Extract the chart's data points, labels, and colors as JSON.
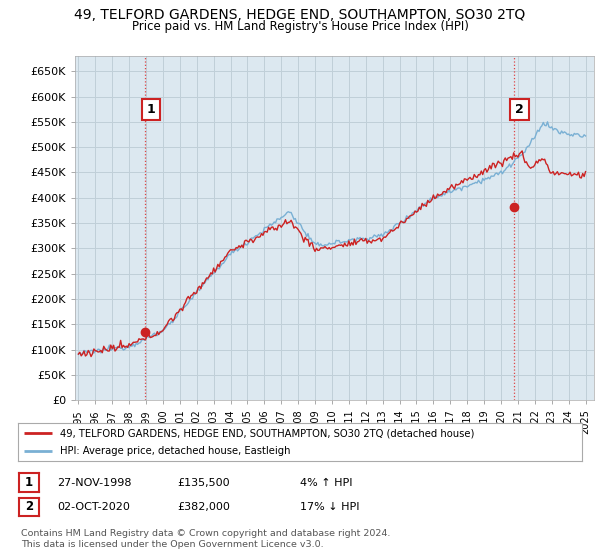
{
  "title": "49, TELFORD GARDENS, HEDGE END, SOUTHAMPTON, SO30 2TQ",
  "subtitle": "Price paid vs. HM Land Registry's House Price Index (HPI)",
  "ytick_labels": [
    "£0",
    "£50K",
    "£100K",
    "£150K",
    "£200K",
    "£250K",
    "£300K",
    "£350K",
    "£400K",
    "£450K",
    "£500K",
    "£550K",
    "£600K",
    "£650K"
  ],
  "ytick_vals": [
    0,
    50000,
    100000,
    150000,
    200000,
    250000,
    300000,
    350000,
    400000,
    450000,
    500000,
    550000,
    600000,
    650000
  ],
  "ylim": [
    0,
    680000
  ],
  "xlim": [
    1994.8,
    2025.5
  ],
  "xtick_years": [
    1995,
    1996,
    1997,
    1998,
    1999,
    2000,
    2001,
    2002,
    2003,
    2004,
    2005,
    2006,
    2007,
    2008,
    2009,
    2010,
    2011,
    2012,
    2013,
    2014,
    2015,
    2016,
    2017,
    2018,
    2019,
    2020,
    2021,
    2022,
    2023,
    2024,
    2025
  ],
  "hpi_color": "#7ab0d4",
  "price_color": "#cc2222",
  "chart_bg": "#dce8f0",
  "point1_x": 1998.92,
  "point1_y": 135500,
  "point2_x": 2020.75,
  "point2_y": 382000,
  "vline_color": "#dd4444",
  "legend_line1": "49, TELFORD GARDENS, HEDGE END, SOUTHAMPTON, SO30 2TQ (detached house)",
  "legend_line2": "HPI: Average price, detached house, Eastleigh",
  "table_row1": [
    "1",
    "27-NOV-1998",
    "£135,500",
    "4% ↑ HPI"
  ],
  "table_row2": [
    "2",
    "02-OCT-2020",
    "£382,000",
    "17% ↓ HPI"
  ],
  "footnote": "Contains HM Land Registry data © Crown copyright and database right 2024.\nThis data is licensed under the Open Government Licence v3.0.",
  "box_color": "#cc2222",
  "grid_color": "#c0cfd8"
}
